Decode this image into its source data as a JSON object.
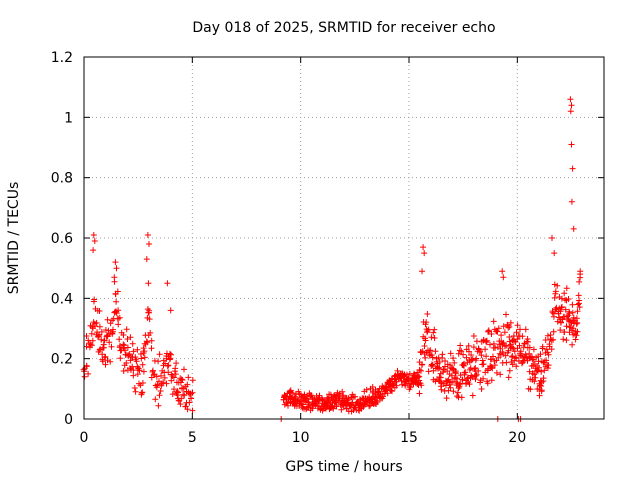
{
  "chart_data": {
    "type": "scatter",
    "title": "Day 018 of 2025, SRMTID for receiver echo",
    "xlabel": "GPS time / hours",
    "ylabel": "SRMTID / TECUs",
    "xlim": [
      0,
      24
    ],
    "ylim": [
      0,
      1.2
    ],
    "xticks": [
      0,
      5,
      10,
      15,
      20
    ],
    "xtick_labels": [
      "0",
      "5",
      "10",
      "15",
      "20"
    ],
    "yticks": [
      0,
      0.2,
      0.4,
      0.6,
      0.8,
      1.0,
      1.2
    ],
    "ytick_labels": [
      "0",
      "0.2",
      "0.4",
      "0.6",
      "0.8",
      "1",
      "1.2"
    ],
    "grid": true,
    "marker": "+",
    "series": [
      {
        "name": "SRMTID",
        "color": "#ff0000",
        "segments": [
          {
            "start": 0.0,
            "end": 5.0,
            "step": 0.05,
            "times": [
              0.0,
              0.2,
              0.45,
              0.7,
              0.95,
              1.2,
              1.45,
              1.7,
              1.95,
              2.2,
              2.45,
              2.7,
              2.95,
              3.2,
              3.45,
              3.7,
              3.95,
              4.2,
              4.45,
              4.7,
              5.0
            ],
            "values": [
              0.15,
              0.22,
              0.33,
              0.28,
              0.22,
              0.26,
              0.38,
              0.24,
              0.2,
              0.18,
              0.14,
              0.13,
              0.36,
              0.15,
              0.11,
              0.14,
              0.19,
              0.12,
              0.09,
              0.07,
              0.05
            ],
            "spread": 0.14
          },
          {
            "start": 9.2,
            "end": 15.5,
            "step": 0.04,
            "times": [
              9.2,
              9.8,
              10.5,
              11.2,
              11.8,
              12.2,
              12.6,
              13.0,
              13.4,
              13.8,
              14.2,
              14.6,
              15.0,
              15.5
            ],
            "values": [
              0.07,
              0.06,
              0.055,
              0.05,
              0.06,
              0.05,
              0.045,
              0.06,
              0.075,
              0.09,
              0.12,
              0.135,
              0.12,
              0.13
            ],
            "spread": 0.05
          },
          {
            "start": 15.5,
            "end": 22.9,
            "step": 0.04,
            "times": [
              15.5,
              15.8,
              16.1,
              16.5,
              17.0,
              17.5,
              18.0,
              18.5,
              19.0,
              19.4,
              19.8,
              20.2,
              20.6,
              21.0,
              21.4,
              21.8,
              22.1,
              22.4,
              22.7,
              22.9
            ],
            "values": [
              0.15,
              0.28,
              0.2,
              0.15,
              0.14,
              0.13,
              0.16,
              0.2,
              0.22,
              0.26,
              0.2,
              0.25,
              0.17,
              0.13,
              0.2,
              0.4,
              0.3,
              0.35,
              0.28,
              0.4
            ],
            "spread": 0.16
          }
        ],
        "spikes": [
          {
            "x": 0.45,
            "y": 0.61
          },
          {
            "x": 0.5,
            "y": 0.59
          },
          {
            "x": 0.42,
            "y": 0.56
          },
          {
            "x": 1.45,
            "y": 0.52
          },
          {
            "x": 1.5,
            "y": 0.5
          },
          {
            "x": 1.4,
            "y": 0.47
          },
          {
            "x": 2.95,
            "y": 0.61
          },
          {
            "x": 3.0,
            "y": 0.58
          },
          {
            "x": 2.9,
            "y": 0.53
          },
          {
            "x": 3.85,
            "y": 0.45
          },
          {
            "x": 4.0,
            "y": 0.36
          },
          {
            "x": 15.65,
            "y": 0.57
          },
          {
            "x": 15.7,
            "y": 0.55
          },
          {
            "x": 15.6,
            "y": 0.49
          },
          {
            "x": 19.3,
            "y": 0.49
          },
          {
            "x": 19.35,
            "y": 0.47
          },
          {
            "x": 21.6,
            "y": 0.6
          },
          {
            "x": 21.7,
            "y": 0.55
          },
          {
            "x": 22.45,
            "y": 1.06
          },
          {
            "x": 22.5,
            "y": 1.04
          },
          {
            "x": 22.47,
            "y": 1.02
          },
          {
            "x": 22.5,
            "y": 0.91
          },
          {
            "x": 22.55,
            "y": 0.83
          },
          {
            "x": 22.52,
            "y": 0.72
          },
          {
            "x": 22.6,
            "y": 0.63
          },
          {
            "x": 22.9,
            "y": 0.49
          }
        ],
        "zero_points": [
          {
            "x": 9.1,
            "y": 0.0
          },
          {
            "x": 19.1,
            "y": 0.0
          },
          {
            "x": 20.05,
            "y": 0.0
          },
          {
            "x": 20.15,
            "y": 0.0
          }
        ]
      }
    ]
  }
}
